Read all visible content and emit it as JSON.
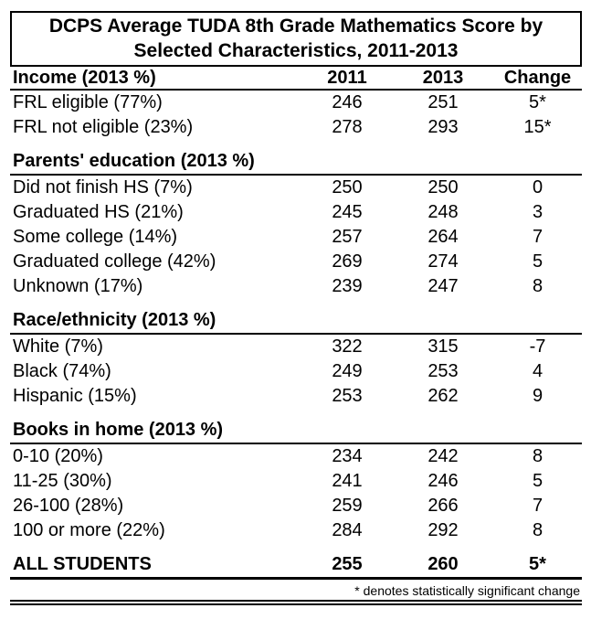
{
  "page": {
    "background": "#ffffff",
    "text_color": "#000000",
    "rule_color": "#000000"
  },
  "title": {
    "line1": "DCPS Average TUDA 8th Grade Mathematics Score by",
    "line2": "Selected Characteristics, 2011-2013"
  },
  "table": {
    "header": {
      "label": "Income (2013 %)",
      "columns": [
        "2011",
        "2013",
        "Change"
      ]
    },
    "sections": [
      {
        "rows": [
          {
            "label": "FRL eligible (77%)",
            "y2011": "246",
            "y2013": "251",
            "change": "5*"
          },
          {
            "label": "FRL not eligible (23%)",
            "y2011": "278",
            "y2013": "293",
            "change": "15*"
          }
        ]
      },
      {
        "title": "Parents' education (2013 %)",
        "rows": [
          {
            "label": "Did not finish HS (7%)",
            "y2011": "250",
            "y2013": "250",
            "change": "0"
          },
          {
            "label": "Graduated HS (21%)",
            "y2011": "245",
            "y2013": "248",
            "change": "3"
          },
          {
            "label": "Some college (14%)",
            "y2011": "257",
            "y2013": "264",
            "change": "7"
          },
          {
            "label": "Graduated college (42%)",
            "y2011": "269",
            "y2013": "274",
            "change": "5"
          },
          {
            "label": "Unknown (17%)",
            "y2011": "239",
            "y2013": "247",
            "change": "8"
          }
        ]
      },
      {
        "title": "Race/ethnicity (2013 %)",
        "rows": [
          {
            "label": "White (7%)",
            "y2011": "322",
            "y2013": "315",
            "change": "-7"
          },
          {
            "label": "Black (74%)",
            "y2011": "249",
            "y2013": "253",
            "change": "4"
          },
          {
            "label": "Hispanic (15%)",
            "y2011": "253",
            "y2013": "262",
            "change": "9"
          }
        ]
      },
      {
        "title": "Books in home (2013 %)",
        "rows": [
          {
            "label": "0-10 (20%)",
            "y2011": "234",
            "y2013": "242",
            "change": "8"
          },
          {
            "label": "11-25 (30%)",
            "y2011": "241",
            "y2013": "246",
            "change": "5"
          },
          {
            "label": "26-100 (28%)",
            "y2011": "259",
            "y2013": "266",
            "change": "7"
          },
          {
            "label": "100 or more (22%)",
            "y2011": "284",
            "y2013": "292",
            "change": "8"
          }
        ]
      }
    ],
    "total": {
      "label": "ALL STUDENTS",
      "y2011": "255",
      "y2013": "260",
      "change": "5*"
    },
    "footnote": "* denotes statistically significant change"
  }
}
